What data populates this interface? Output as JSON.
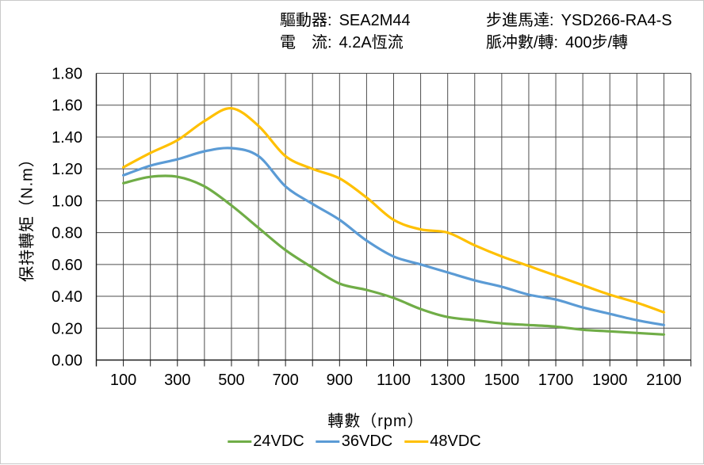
{
  "header": {
    "col1": [
      {
        "label": "驅動器:",
        "value": "SEA2M44"
      },
      {
        "label": "電　流:",
        "value": "4.2A恆流"
      }
    ],
    "col2": [
      {
        "label": "步進馬達:",
        "value": "YSD266-RA4-S"
      },
      {
        "label": "脈冲數/轉:",
        "value": "400步/轉"
      }
    ]
  },
  "chart_data": {
    "type": "line",
    "title": "",
    "xlabel": "轉數（rpm）",
    "ylabel": "保持轉矩（N.m）",
    "xlim": [
      0,
      2200
    ],
    "ylim": [
      0.0,
      1.8
    ],
    "grid": "on",
    "grid_x_step": 100,
    "grid_y_step": 0.2,
    "legend_position": "bottom",
    "x_tick_labels": [
      "100",
      "300",
      "500",
      "700",
      "900",
      "1100",
      "1300",
      "1500",
      "1700",
      "1900",
      "2100"
    ],
    "x_tick_values": [
      100,
      300,
      500,
      700,
      900,
      1100,
      1300,
      1500,
      1700,
      1900,
      2100
    ],
    "y_tick_labels": [
      "0.00",
      "0.20",
      "0.40",
      "0.60",
      "0.80",
      "1.00",
      "1.20",
      "1.40",
      "1.60",
      "1.80"
    ],
    "y_tick_values": [
      0.0,
      0.2,
      0.4,
      0.6,
      0.8,
      1.0,
      1.2,
      1.4,
      1.6,
      1.8
    ],
    "x": [
      100,
      200,
      300,
      400,
      500,
      600,
      700,
      800,
      900,
      1000,
      1100,
      1200,
      1300,
      1400,
      1500,
      1600,
      1700,
      1800,
      1900,
      2000,
      2100
    ],
    "series": [
      {
        "name": "24VDC",
        "color": "#70AD47",
        "values": [
          1.11,
          1.15,
          1.15,
          1.09,
          0.97,
          0.83,
          0.69,
          0.58,
          0.48,
          0.44,
          0.39,
          0.32,
          0.27,
          0.25,
          0.23,
          0.22,
          0.21,
          0.19,
          0.18,
          0.17,
          0.16
        ]
      },
      {
        "name": "36VDC",
        "color": "#5B9BD5",
        "values": [
          1.16,
          1.22,
          1.26,
          1.31,
          1.33,
          1.28,
          1.09,
          0.98,
          0.88,
          0.75,
          0.65,
          0.6,
          0.55,
          0.5,
          0.46,
          0.41,
          0.38,
          0.33,
          0.29,
          0.25,
          0.22
        ]
      },
      {
        "name": "48VDC",
        "color": "#FFC000",
        "values": [
          1.21,
          1.3,
          1.38,
          1.5,
          1.58,
          1.47,
          1.28,
          1.2,
          1.14,
          1.02,
          0.88,
          0.82,
          0.8,
          0.72,
          0.65,
          0.59,
          0.53,
          0.47,
          0.41,
          0.36,
          0.3
        ]
      }
    ]
  },
  "style_colors": {
    "grid": "#4d4d4d",
    "axis": "#1a1a1a",
    "text": "#000000",
    "background": "#ffffff"
  }
}
